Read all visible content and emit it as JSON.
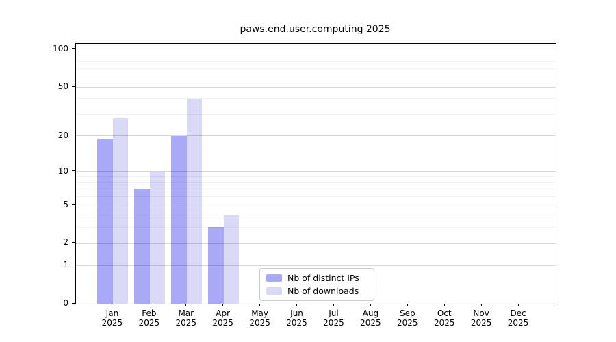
{
  "chart_data": {
    "type": "bar",
    "title": "paws.end.user.computing 2025",
    "categories": [
      "Jan",
      "Feb",
      "Mar",
      "Apr",
      "May",
      "Jun",
      "Jul",
      "Aug",
      "Sep",
      "Oct",
      "Nov",
      "Dec"
    ],
    "x_year_label": "2025",
    "series": [
      {
        "name": "Nb of distinct IPs",
        "color": "#a9a9f8",
        "values": [
          19,
          7,
          20,
          3,
          null,
          null,
          null,
          null,
          null,
          null,
          null,
          null
        ]
      },
      {
        "name": "Nb of downloads",
        "color": "#dadaf8",
        "values": [
          28,
          10,
          40,
          4,
          null,
          null,
          null,
          null,
          null,
          null,
          null,
          null
        ]
      }
    ],
    "y_scale": "log1p",
    "y_major_ticks": [
      0,
      1,
      2,
      5,
      10,
      20,
      50,
      100
    ],
    "y_minor_ticks": [
      3,
      4,
      6,
      7,
      8,
      9,
      30,
      40,
      60,
      70,
      80,
      90
    ],
    "y_top": 110.5,
    "ylim": [
      0,
      110.5
    ],
    "grid": true,
    "legend_position": "lower center"
  }
}
